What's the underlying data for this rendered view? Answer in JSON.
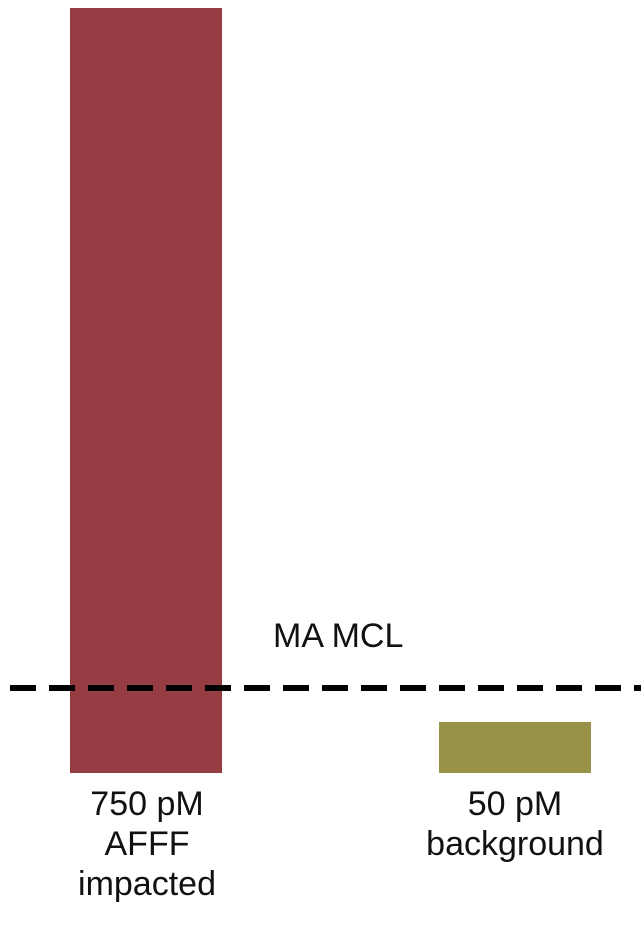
{
  "chart_data": {
    "type": "bar",
    "categories": [
      "750 pM\nAFFF\nimpacted",
      "50 pM\nbackground"
    ],
    "values": [
      750,
      50
    ],
    "units": "pM",
    "colors": [
      "#963C43",
      "#979248"
    ],
    "reference_line": {
      "label": "MA MCL",
      "style": "dashed",
      "color": "#000000"
    },
    "title": "",
    "xlabel": "",
    "ylabel": "",
    "grid": false
  }
}
